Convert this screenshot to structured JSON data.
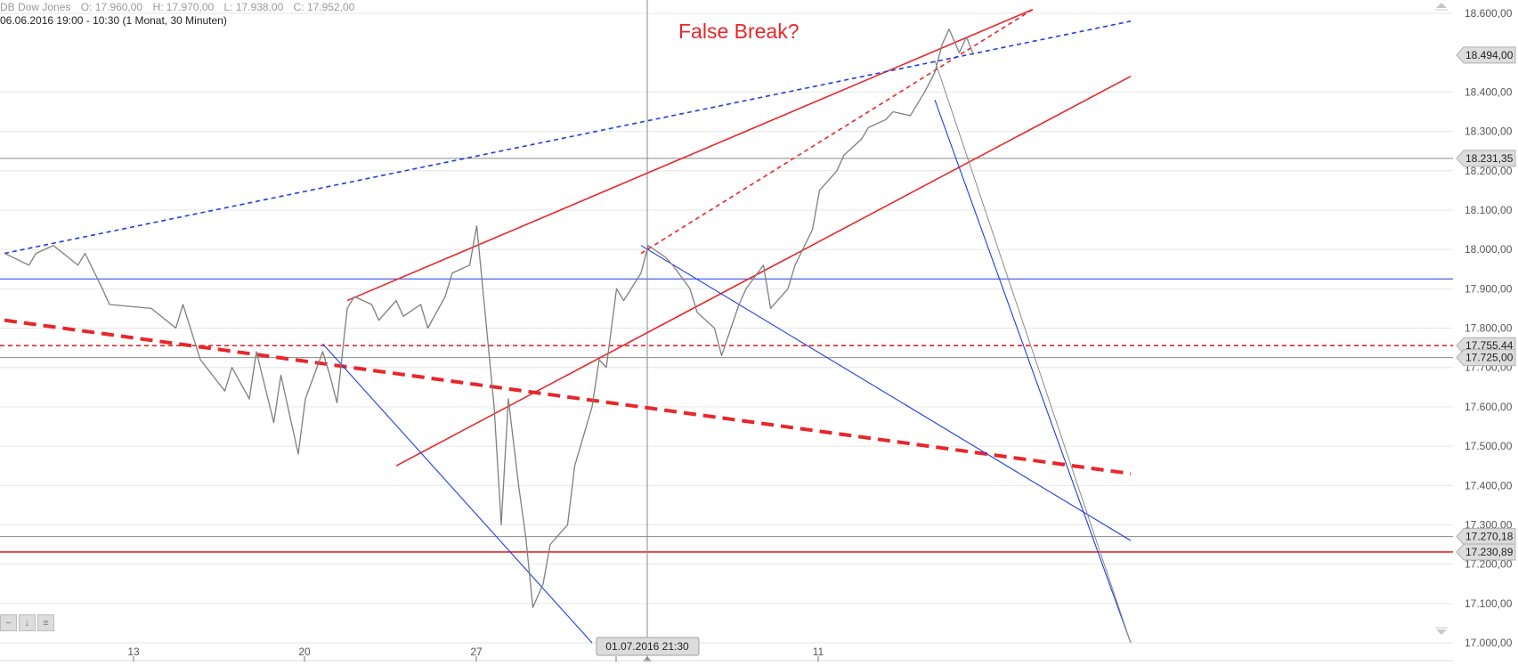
{
  "header": {
    "title": "DB Dow Jones",
    "open": "O: 17.960,00",
    "high": "H: 17.970,00",
    "low": "L: 17.938,00",
    "close": "C: 17.952,00",
    "range": "06.06.2016 19:00 - 10:30 (1 Monat, 30 Minuten)"
  },
  "controls": {
    "zoom_out_icon": "minus-icon",
    "down_icon": "arrow-down-icon",
    "menu_icon": "menu-icon",
    "scroll_up_icon": "triangle-up-icon",
    "scroll_down_icon": "triangle-down-icon"
  },
  "colors": {
    "price": "#7f7f7f",
    "red": "#e8262a",
    "blue": "#1f3de0",
    "gray_line": "#8a8a8a",
    "grid": "#e6e6e6",
    "label_bg": "#dcdcdc"
  },
  "chart_data": {
    "type": "line",
    "title": "",
    "annotation": "False Break?",
    "ylim": [
      17000,
      18600
    ],
    "y_ticks": [
      "18.600,00",
      "18.400,00",
      "18.300,00",
      "18.200,00",
      "18.100,00",
      "18.000,00",
      "17.900,00",
      "17.800,00",
      "17.700,00",
      "17.600,00",
      "17.500,00",
      "17.400,00",
      "17.300,00",
      "17.200,00",
      "17.100,00",
      "17.000,00"
    ],
    "x_ticks": [
      "13",
      "20",
      "27",
      "11"
    ],
    "crosshair_label": "01.07.2016 21:30",
    "price_labels": [
      {
        "text": "18.494,00",
        "value": 18494
      },
      {
        "text": "18.231,35",
        "value": 18231.35
      },
      {
        "text": "17.755,44",
        "value": 17755.44
      },
      {
        "text": "17.725,00",
        "value": 17725
      },
      {
        "text": "17.270,18",
        "value": 17270.18
      },
      {
        "text": "17.230,89",
        "value": 17230.89
      }
    ],
    "series": [
      {
        "points": [
          [
            "2016-06-06",
            17990
          ],
          [
            "2016-06-07",
            17960
          ],
          [
            "2016-06-07",
            17990
          ],
          [
            "2016-06-08",
            18010
          ],
          [
            "2016-06-09",
            17960
          ],
          [
            "2016-06-09",
            17990
          ],
          [
            "2016-06-10",
            17900
          ],
          [
            "2016-06-10",
            17860
          ],
          [
            "2016-06-12",
            17850
          ],
          [
            "2016-06-13",
            17800
          ],
          [
            "2016-06-13",
            17860
          ],
          [
            "2016-06-14",
            17720
          ],
          [
            "2016-06-15",
            17640
          ],
          [
            "2016-06-15",
            17700
          ],
          [
            "2016-06-16",
            17620
          ],
          [
            "2016-06-16",
            17740
          ],
          [
            "2016-06-17",
            17560
          ],
          [
            "2016-06-17",
            17680
          ],
          [
            "2016-06-18",
            17480
          ],
          [
            "2016-06-18",
            17620
          ],
          [
            "2016-06-19",
            17740
          ],
          [
            "2016-06-19",
            17680
          ],
          [
            "2016-06-19",
            17610
          ],
          [
            "2016-06-20",
            17850
          ],
          [
            "2016-06-20",
            17880
          ],
          [
            "2016-06-21",
            17860
          ],
          [
            "2016-06-21",
            17820
          ],
          [
            "2016-06-22",
            17870
          ],
          [
            "2016-06-22",
            17830
          ],
          [
            "2016-06-23",
            17860
          ],
          [
            "2016-06-23",
            17800
          ],
          [
            "2016-06-24",
            17880
          ],
          [
            "2016-06-24",
            17940
          ],
          [
            "2016-06-25",
            17960
          ],
          [
            "2016-06-25",
            18060
          ],
          [
            "2016-06-26",
            17600
          ],
          [
            "2016-06-26",
            17300
          ],
          [
            "2016-06-26",
            17620
          ],
          [
            "2016-06-27",
            17400
          ],
          [
            "2016-06-27",
            17270
          ],
          [
            "2016-06-27",
            17090
          ],
          [
            "2016-06-28",
            17150
          ],
          [
            "2016-06-28",
            17250
          ],
          [
            "2016-06-29",
            17300
          ],
          [
            "2016-06-29",
            17450
          ],
          [
            "2016-06-30",
            17600
          ],
          [
            "2016-06-30",
            17720
          ],
          [
            "2016-06-30",
            17700
          ],
          [
            "2016-07-01",
            17900
          ],
          [
            "2016-07-01",
            17870
          ],
          [
            "2016-07-02",
            17940
          ],
          [
            "2016-07-02",
            18010
          ],
          [
            "2016-07-03",
            17980
          ],
          [
            "2016-07-03",
            17960
          ],
          [
            "2016-07-04",
            17900
          ],
          [
            "2016-07-04",
            17840
          ],
          [
            "2016-07-05",
            17800
          ],
          [
            "2016-07-05",
            17730
          ],
          [
            "2016-07-06",
            17860
          ],
          [
            "2016-07-06",
            17900
          ],
          [
            "2016-07-07",
            17960
          ],
          [
            "2016-07-07",
            17850
          ],
          [
            "2016-07-08",
            17900
          ],
          [
            "2016-07-08",
            17960
          ],
          [
            "2016-07-09",
            18050
          ],
          [
            "2016-07-09",
            18150
          ],
          [
            "2016-07-10",
            18200
          ],
          [
            "2016-07-10",
            18240
          ],
          [
            "2016-07-11",
            18280
          ],
          [
            "2016-07-11",
            18310
          ],
          [
            "2016-07-12",
            18330
          ],
          [
            "2016-07-12",
            18350
          ],
          [
            "2016-07-13",
            18340
          ],
          [
            "2016-07-13",
            18370
          ],
          [
            "2016-07-13",
            18400
          ],
          [
            "2016-07-14",
            18450
          ],
          [
            "2016-07-14",
            18520
          ],
          [
            "2016-07-14",
            18560
          ],
          [
            "2016-07-15",
            18500
          ],
          [
            "2016-07-15",
            18540
          ],
          [
            "2016-07-15",
            18494
          ]
        ]
      }
    ],
    "lines": [
      {
        "color": "#e8262a",
        "style": "solid",
        "x1": "2016-06-20",
        "y1": 17870,
        "x2": "2016-07-18",
        "y2": 18610
      },
      {
        "color": "#e8262a",
        "style": "solid",
        "x1": "2016-06-22",
        "y1": 17450,
        "x2": "2016-07-22",
        "y2": 18440
      },
      {
        "color": "#e8262a",
        "style": "dashed",
        "x1": "2016-07-02",
        "y1": 17990,
        "x2": "2016-07-18",
        "y2": 18610
      },
      {
        "color": "#e8262a",
        "style": "dashed-thick",
        "x1": "2016-06-06",
        "y1": 17820,
        "x2": "2016-07-22",
        "y2": 17430
      },
      {
        "color": "#1f3de0",
        "style": "dashed",
        "x1": "2016-06-06",
        "y1": 17990,
        "x2": "2016-07-22",
        "y2": 18580
      },
      {
        "color": "#1f3de0",
        "style": "solid",
        "x1": "2016-06-19",
        "y1": 17760,
        "x2": "2016-06-30",
        "y2": 17000
      },
      {
        "color": "#1f3de0",
        "style": "solid",
        "x1": "2016-07-02",
        "y1": 18010,
        "x2": "2016-07-22",
        "y2": 17260
      },
      {
        "color": "#1f3de0",
        "style": "solid",
        "x1": "2016-07-14",
        "y1": 18380,
        "x2": "2016-07-22",
        "y2": 17000
      },
      {
        "color": "#8a8a8a",
        "style": "solid",
        "x1": "2016-07-14",
        "y1": 18480,
        "x2": "2016-07-22",
        "y2": 17000
      }
    ],
    "hlines": [
      {
        "value": 18231.35,
        "color": "#8a8a8a",
        "style": "solid"
      },
      {
        "value": 17925,
        "color": "#1f3de0",
        "style": "solid"
      },
      {
        "value": 17755.44,
        "color": "#e8262a",
        "style": "dashed"
      },
      {
        "value": 17725,
        "color": "#8a8a8a",
        "style": "solid"
      },
      {
        "value": 17270.18,
        "color": "#8a8a8a",
        "style": "solid"
      },
      {
        "value": 17230.89,
        "color": "#e8262a",
        "style": "solid"
      }
    ],
    "grid": true
  }
}
